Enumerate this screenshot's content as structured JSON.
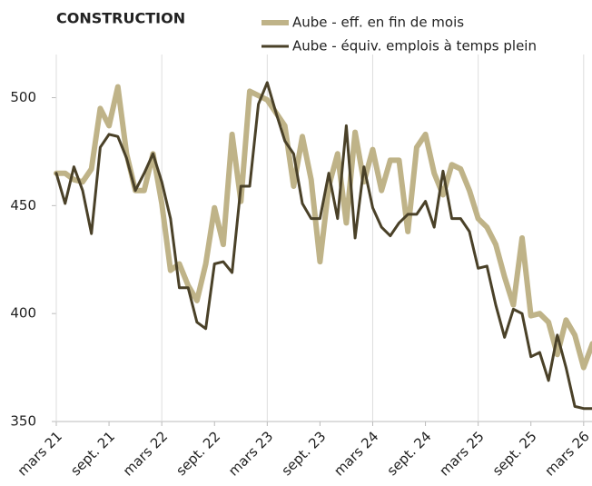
{
  "chart_data": {
    "type": "line",
    "title": "CONSTRUCTION",
    "categories": [
      "mars 21",
      null,
      null,
      null,
      null,
      null,
      "sept. 21",
      null,
      null,
      null,
      null,
      null,
      "mars 22",
      null,
      null,
      null,
      null,
      null,
      "sept. 22",
      null,
      null,
      null,
      null,
      null,
      "mars 23",
      null,
      null,
      null,
      null,
      null,
      "sept. 23",
      null,
      null,
      null,
      null,
      null,
      "mars 24",
      null,
      null,
      null,
      null,
      null,
      "sept. 24",
      null,
      null,
      null,
      null,
      null,
      "mars 25",
      null,
      null,
      null,
      null,
      null,
      "sept. 25",
      null,
      null,
      null,
      null,
      null,
      "mars 26",
      null
    ],
    "series": [
      {
        "name": "Aube - eff. en fin de mois",
        "color": "#bfb388",
        "values": [
          465,
          465,
          462,
          461,
          467,
          495,
          487,
          505,
          474,
          457,
          457,
          474,
          451,
          420,
          423,
          413,
          406,
          423,
          449,
          432,
          483,
          452,
          503,
          501,
          499,
          493,
          487,
          459,
          482,
          462,
          424,
          459,
          474,
          442,
          484,
          461,
          476,
          457,
          471,
          471,
          438,
          477,
          483,
          465,
          455,
          469,
          467,
          457,
          444,
          440,
          432,
          417,
          404,
          435,
          399,
          400,
          396,
          381,
          397,
          390,
          375,
          386
        ]
      },
      {
        "name": "Aube - équiv. emplois à temps plein",
        "color": "#4a4128",
        "values": [
          465,
          451,
          468,
          457,
          437,
          477,
          483,
          482,
          472,
          457,
          465,
          474,
          461,
          444,
          412,
          412,
          396,
          393,
          423,
          424,
          419,
          459,
          459,
          497,
          507,
          493,
          480,
          474,
          451,
          444,
          444,
          465,
          444,
          487,
          435,
          468,
          449,
          440,
          436,
          442,
          446,
          446,
          452,
          440,
          466,
          444,
          444,
          438,
          421,
          422,
          404,
          389,
          402,
          400,
          380,
          382,
          369,
          390,
          375,
          357,
          356,
          356
        ]
      }
    ],
    "ylim": [
      350,
      520
    ],
    "yticks": [
      350,
      400,
      450,
      500
    ]
  }
}
